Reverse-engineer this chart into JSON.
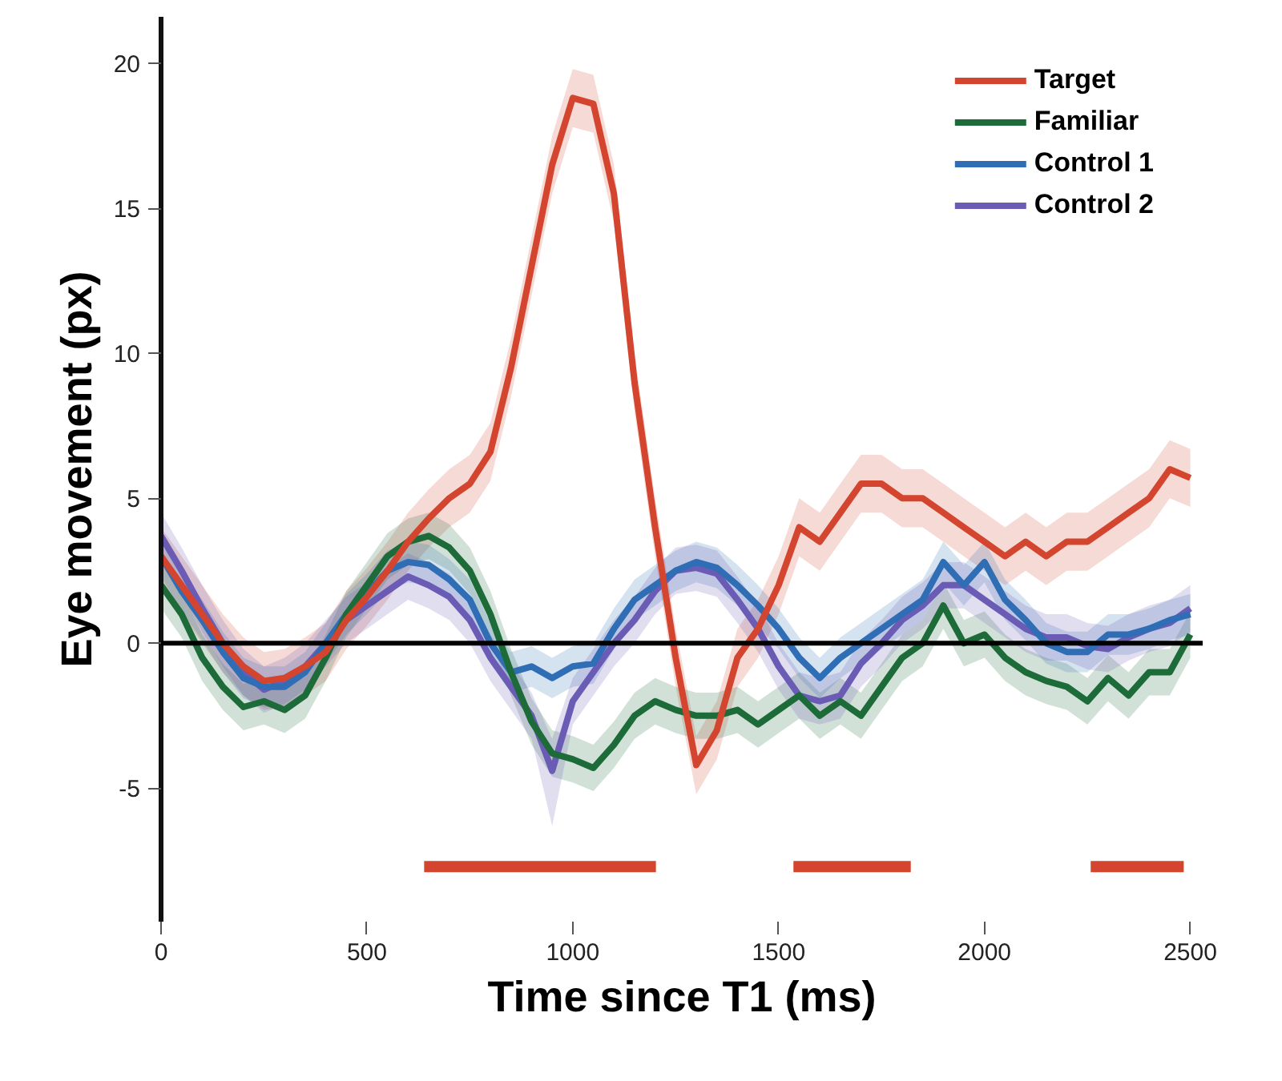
{
  "chart_data": {
    "type": "line",
    "xlabel": "Time since T1 (ms)",
    "ylabel": "Eye movement (px)",
    "x": [
      0,
      50,
      100,
      150,
      200,
      250,
      300,
      350,
      400,
      450,
      500,
      550,
      600,
      650,
      700,
      750,
      800,
      850,
      900,
      950,
      1000,
      1050,
      1100,
      1150,
      1200,
      1250,
      1300,
      1350,
      1400,
      1450,
      1500,
      1550,
      1600,
      1650,
      1700,
      1750,
      1800,
      1850,
      1900,
      1950,
      2000,
      2050,
      2100,
      2150,
      2200,
      2250,
      2300,
      2350,
      2400,
      2450,
      2500
    ],
    "xlim": [
      0,
      2530
    ],
    "ylim": [
      -9.6,
      21.6
    ],
    "xticks": [
      0,
      500,
      1000,
      1500,
      2000,
      2500
    ],
    "yticks": [
      {
        "value": -5,
        "label": "-5"
      },
      0,
      5,
      10,
      15,
      20
    ],
    "grid": false,
    "legend": "top right",
    "ref_lines": [
      {
        "axis": "y",
        "value": 0,
        "color": "#000000"
      }
    ],
    "series": [
      {
        "name": "Target",
        "color": "#d4452f",
        "values": [
          3.0,
          2.0,
          1.0,
          0,
          -0.8,
          -1.3,
          -1.2,
          -0.8,
          -0.3,
          0.8,
          1.6,
          2.5,
          3.5,
          4.3,
          5.0,
          5.5,
          6.6,
          9.5,
          13,
          16.5,
          18.8,
          18.6,
          15.5,
          9,
          4,
          -0.5,
          -4.2,
          -3,
          -0.5,
          0.5,
          2,
          4,
          3.5,
          4.5,
          5.5,
          5.5,
          5,
          5,
          4.5,
          4,
          3.5,
          3,
          3.5,
          3,
          3.5,
          3.5,
          4,
          4.5,
          5,
          6,
          5.7
        ],
        "lower": [
          2,
          1,
          0,
          -1,
          -1.8,
          -2.3,
          -2.2,
          -1.8,
          -1.3,
          -0.2,
          0.6,
          1.5,
          2.5,
          3.3,
          4,
          4.5,
          5.6,
          8.5,
          12,
          15.5,
          17.8,
          17.6,
          14.5,
          8,
          3,
          -1.5,
          -5.2,
          -4,
          -1.5,
          -0.5,
          1,
          3,
          2.5,
          3.5,
          4.5,
          4.5,
          4,
          4,
          3.5,
          3,
          2.5,
          2,
          2.5,
          2,
          2.5,
          2.5,
          3,
          3.5,
          4,
          5,
          4.7
        ],
        "upper": [
          4,
          3,
          2,
          1,
          0.2,
          -0.3,
          -0.2,
          0.2,
          0.7,
          1.8,
          2.6,
          3.5,
          4.5,
          5.3,
          6,
          6.5,
          7.6,
          10.5,
          14,
          17.5,
          19.8,
          19.6,
          16.5,
          10,
          5,
          0.5,
          -3.2,
          -2,
          0.5,
          1.5,
          3,
          5,
          4.5,
          5.5,
          6.5,
          6.5,
          6,
          6,
          5.5,
          5,
          4.5,
          4,
          4.5,
          4,
          4.5,
          4.5,
          5,
          5.5,
          6,
          7,
          6.7
        ]
      },
      {
        "name": "Familiar",
        "color": "#1e6b3a",
        "values": [
          2,
          1,
          -0.5,
          -1.5,
          -2.2,
          -2,
          -2.3,
          -1.8,
          -0.5,
          1,
          2,
          3,
          3.5,
          3.7,
          3.3,
          2.5,
          1,
          -1,
          -2.7,
          -3.8,
          -4,
          -4.3,
          -3.5,
          -2.5,
          -2,
          -2.3,
          -2.5,
          -2.5,
          -2.3,
          -2.8,
          -2.3,
          -1.8,
          -2.5,
          -2,
          -2.5,
          -1.5,
          -0.5,
          0,
          1.3,
          0,
          0.3,
          -0.5,
          -1,
          -1.3,
          -1.5,
          -2,
          -1.2,
          -1.8,
          -1,
          -1,
          0.3
        ],
        "lower": [
          1.2,
          0.2,
          -1.3,
          -2.3,
          -3,
          -2.8,
          -3.1,
          -2.6,
          -1.3,
          0.2,
          1.2,
          2.2,
          2.7,
          2.9,
          2.5,
          1.7,
          0.2,
          -1.8,
          -3.5,
          -4.6,
          -4.8,
          -5.1,
          -4.3,
          -3.3,
          -2.8,
          -3.1,
          -3.3,
          -3.3,
          -3.1,
          -3.6,
          -3.1,
          -2.6,
          -3.3,
          -2.8,
          -3.3,
          -2.3,
          -1.3,
          -0.8,
          0.5,
          -0.8,
          -0.5,
          -1.3,
          -1.8,
          -2.1,
          -2.3,
          -2.8,
          -2,
          -2.6,
          -1.8,
          -1.8,
          -0.5
        ],
        "upper": [
          2.8,
          1.8,
          0.3,
          -0.7,
          -1.4,
          -1.2,
          -1.5,
          -1,
          0.3,
          1.8,
          2.8,
          3.8,
          4.3,
          4.5,
          4.1,
          3.3,
          1.8,
          -0.2,
          -1.9,
          -3,
          -3.2,
          -3.5,
          -2.7,
          -1.7,
          -1.2,
          -1.5,
          -1.7,
          -1.7,
          -1.5,
          -2,
          -1.5,
          -1,
          -1.7,
          -1.2,
          -1.7,
          -0.7,
          0.3,
          0.8,
          2.1,
          0.8,
          1.1,
          0.3,
          -0.2,
          -0.5,
          -0.7,
          -1.2,
          -0.4,
          -1,
          -0.2,
          -0.2,
          1.1
        ]
      },
      {
        "name": "Control 1",
        "color": "#2f6db5",
        "values": [
          3,
          1.8,
          0.8,
          -0.3,
          -1.2,
          -1.5,
          -1.5,
          -1,
          0,
          1,
          1.7,
          2.5,
          2.8,
          2.7,
          2.2,
          1.5,
          0,
          -1,
          -0.8,
          -1.2,
          -0.8,
          -0.7,
          0.5,
          1.5,
          2,
          2.5,
          2.8,
          2.6,
          2,
          1.3,
          0.5,
          -0.5,
          -1.2,
          -0.5,
          0,
          0.5,
          1,
          1.5,
          2.8,
          2,
          2.8,
          1.5,
          0.8,
          0,
          -0.3,
          -0.3,
          0.3,
          0.3,
          0.5,
          0.8,
          1
        ],
        "lower": [
          2.3,
          1.1,
          0.1,
          -1,
          -1.9,
          -2.2,
          -2.2,
          -1.7,
          -0.7,
          0.3,
          1,
          1.8,
          2.1,
          2,
          1.5,
          0.8,
          -0.7,
          -1.7,
          -1.5,
          -1.9,
          -1.5,
          -1.4,
          -0.2,
          0.8,
          1.3,
          1.8,
          2.1,
          1.9,
          1.3,
          0.6,
          -0.2,
          -1.2,
          -1.9,
          -1.2,
          -0.7,
          -0.2,
          0.3,
          0.8,
          2.1,
          1.3,
          2.1,
          0.8,
          0.1,
          -0.7,
          -1,
          -1,
          -0.4,
          -0.4,
          -0.2,
          0.1,
          0.3
        ],
        "upper": [
          3.7,
          2.5,
          1.5,
          0.4,
          -0.5,
          -0.8,
          -0.8,
          -0.3,
          0.7,
          1.7,
          2.4,
          3.2,
          3.5,
          3.4,
          2.9,
          2.2,
          0.7,
          -0.3,
          -0.1,
          -0.5,
          -0.1,
          0,
          1.2,
          2.2,
          2.7,
          3.2,
          3.5,
          3.3,
          2.7,
          2,
          1.2,
          0.2,
          -0.5,
          0.2,
          0.7,
          1.2,
          1.7,
          2.2,
          3.5,
          2.7,
          3.5,
          2.2,
          1.5,
          0.7,
          0.4,
          0.4,
          1,
          1,
          1.2,
          1.5,
          1.7
        ]
      },
      {
        "name": "Control 2",
        "color": "#6a5bb5",
        "values": [
          3.7,
          2.5,
          1.2,
          0,
          -1,
          -1.6,
          -1.3,
          -0.8,
          0,
          0.8,
          1.3,
          1.8,
          2.3,
          2,
          1.6,
          0.8,
          -0.5,
          -1.5,
          -2.5,
          -4.4,
          -2,
          -1,
          0,
          0.8,
          1.8,
          2.5,
          2.6,
          2.4,
          1.5,
          0.5,
          -0.8,
          -1.8,
          -2,
          -1.8,
          -0.7,
          0,
          0.8,
          1.3,
          2,
          2,
          1.5,
          1,
          0.5,
          0.2,
          0.2,
          -0.1,
          -0.2,
          0.2,
          0.5,
          0.7,
          1.2
        ],
        "lower": [
          2.9,
          1.7,
          0.4,
          -0.8,
          -1.8,
          -2.4,
          -2.1,
          -1.6,
          -0.8,
          0,
          0.5,
          1,
          1.5,
          1.2,
          0.8,
          0,
          -1.3,
          -2.3,
          -3.3,
          -6.3,
          -2.8,
          -1.8,
          -0.8,
          0,
          1,
          1.7,
          1.8,
          1.6,
          0.7,
          -0.3,
          -1.6,
          -2.6,
          -2.8,
          -2.6,
          -1.5,
          -0.8,
          0,
          0.5,
          1.2,
          1.2,
          0.7,
          0.2,
          -0.3,
          -0.6,
          -0.6,
          -0.9,
          -1,
          -0.6,
          -0.3,
          -0.1,
          0.4
        ],
        "upper": [
          4.5,
          3.3,
          2,
          0.8,
          -0.2,
          -0.8,
          -0.5,
          0,
          0.8,
          1.6,
          2.1,
          2.6,
          3.1,
          2.8,
          2.4,
          1.6,
          0.3,
          -0.7,
          -1.7,
          -3.3,
          -1.2,
          -0.2,
          0.8,
          1.6,
          2.6,
          3.3,
          3.4,
          3.2,
          2.3,
          1.3,
          0,
          -1,
          -1.2,
          -1,
          0.1,
          0.8,
          1.6,
          2.1,
          2.8,
          2.8,
          2.3,
          1.8,
          1.3,
          1,
          1,
          0.7,
          0.6,
          1,
          1.3,
          1.5,
          2
        ]
      },
      {
        "color": "#d4452f",
        "x": [
          639,
          1202,
          1203,
          1536,
          1821,
          1822,
          2258,
          2484
        ],
        "values": [
          -7.7,
          -7.7,
          null,
          -7.7,
          -7.7,
          null,
          -7.7,
          -7.7
        ]
      }
    ]
  }
}
